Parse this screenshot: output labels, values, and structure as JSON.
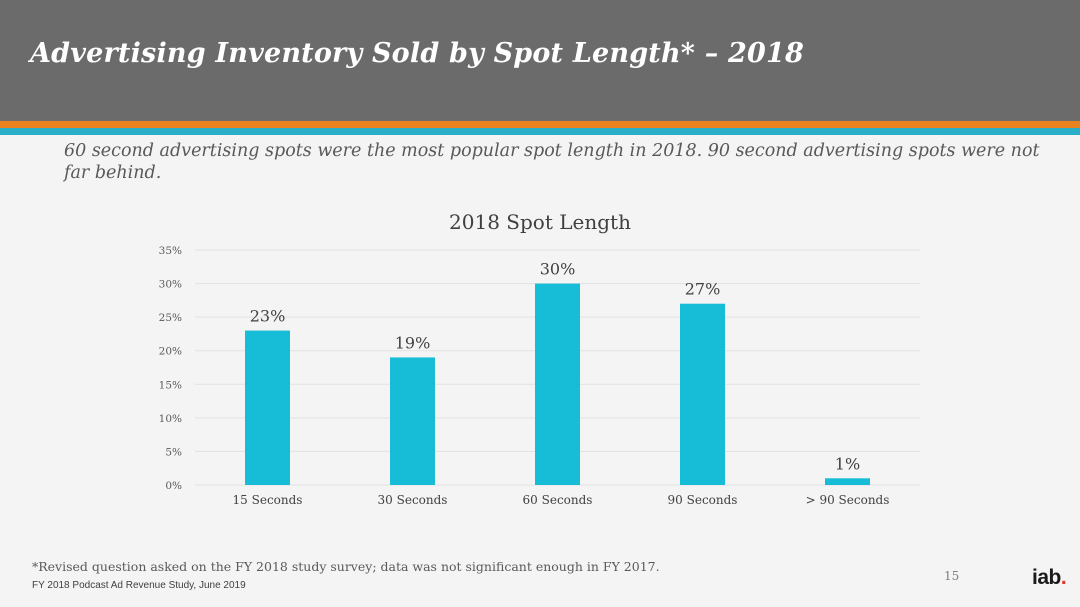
{
  "header": {
    "title": "Advertising Inventory Sold by Spot Length* – 2018"
  },
  "subtitle": "60 second advertising spots were the most popular spot length in 2018. 90 second advertising spots were not far behind.",
  "chart_data": {
    "type": "bar",
    "title": "2018 Spot Length",
    "categories": [
      "15 Seconds",
      "30 Seconds",
      "60 Seconds",
      "90 Seconds",
      "> 90 Seconds"
    ],
    "values": [
      23,
      19,
      30,
      27,
      1
    ],
    "value_labels": [
      "23%",
      "19%",
      "30%",
      "27%",
      "1%"
    ],
    "y_ticks": [
      0,
      5,
      10,
      15,
      20,
      25,
      30,
      35
    ],
    "y_tick_labels": [
      "0%",
      "5%",
      "10%",
      "15%",
      "20%",
      "25%",
      "30%",
      "35%"
    ],
    "ylim": [
      0,
      35
    ],
    "grid": true,
    "bar_color": "#17bcd6",
    "grid_color": "#e2e2e2"
  },
  "footer": {
    "footnote": "*Revised question asked on the FY 2018 study survey; data was not significant enough in FY 2017.",
    "source": "FY 2018 Podcast Ad Revenue Study, June 2019",
    "page_number": "15",
    "logo_text": "iab",
    "logo_dot": "."
  },
  "colors": {
    "header_bg": "#6b6b6b",
    "stripe_orange": "#e8831f",
    "stripe_teal": "#29aec7",
    "logo_dot": "#e8312f"
  }
}
